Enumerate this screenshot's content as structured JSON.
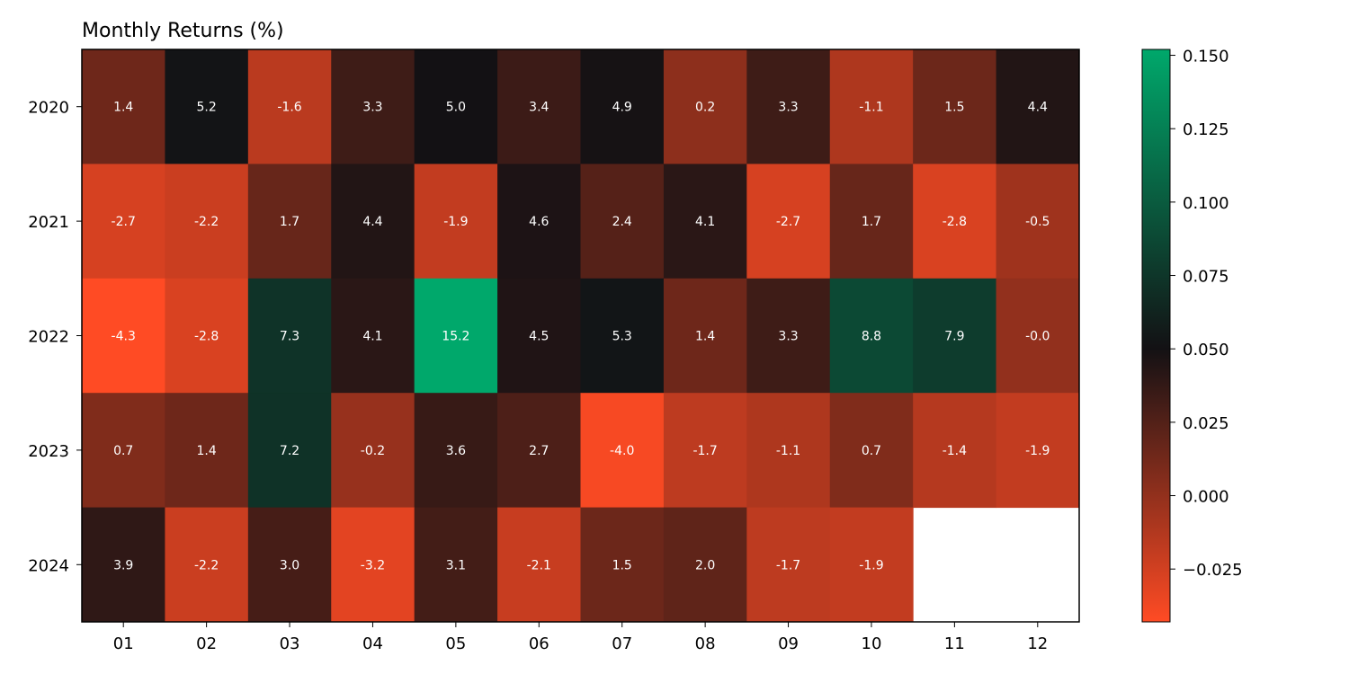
{
  "chart_data": {
    "type": "heatmap",
    "title": "Monthly Returns (%)",
    "xlabel": "",
    "ylabel": "",
    "x_categories": [
      "01",
      "02",
      "03",
      "04",
      "05",
      "06",
      "07",
      "08",
      "09",
      "10",
      "11",
      "12"
    ],
    "y_categories": [
      "2020",
      "2021",
      "2022",
      "2023",
      "2024"
    ],
    "values": [
      [
        1.4,
        5.2,
        -1.6,
        3.3,
        5.0,
        3.4,
        4.9,
        0.2,
        3.3,
        -1.1,
        1.5,
        4.4
      ],
      [
        -2.7,
        -2.2,
        1.7,
        4.4,
        -1.9,
        4.6,
        2.4,
        4.1,
        -2.7,
        1.7,
        -2.8,
        -0.5
      ],
      [
        -4.3,
        -2.8,
        7.3,
        4.1,
        15.2,
        4.5,
        5.3,
        1.4,
        3.3,
        8.8,
        7.9,
        -0.0
      ],
      [
        0.7,
        1.4,
        7.2,
        -0.2,
        3.6,
        2.7,
        -4.0,
        -1.7,
        -1.1,
        0.7,
        -1.4,
        -1.9
      ],
      [
        3.9,
        -2.2,
        3.0,
        -3.2,
        3.1,
        -2.1,
        1.5,
        2.0,
        -1.7,
        -1.9,
        null,
        null
      ]
    ],
    "value_labels": [
      [
        "1.4",
        "5.2",
        "-1.6",
        "3.3",
        "5.0",
        "3.4",
        "4.9",
        "0.2",
        "3.3",
        "-1.1",
        "1.5",
        "4.4"
      ],
      [
        "-2.7",
        "-2.2",
        "1.7",
        "4.4",
        "-1.9",
        "4.6",
        "2.4",
        "4.1",
        "-2.7",
        "1.7",
        "-2.8",
        "-0.5"
      ],
      [
        "-4.3",
        "-2.8",
        "7.3",
        "4.1",
        "15.2",
        "4.5",
        "5.3",
        "1.4",
        "3.3",
        "8.8",
        "7.9",
        "-0.0"
      ],
      [
        "0.7",
        "1.4",
        "7.2",
        "-0.2",
        "3.6",
        "2.7",
        "-4.0",
        "-1.7",
        "-1.1",
        "0.7",
        "-1.4",
        "-1.9"
      ],
      [
        "3.9",
        "-2.2",
        "3.0",
        "-3.2",
        "3.1",
        "-2.1",
        "1.5",
        "2.0",
        "-1.7",
        "-1.9",
        "",
        ""
      ]
    ],
    "colorbar": {
      "range": [
        -0.043,
        0.152
      ],
      "ticks": [
        -0.025,
        0.0,
        0.025,
        0.05,
        0.075,
        0.1,
        0.125,
        0.15
      ],
      "tick_labels": [
        "−0.025",
        "0.000",
        "0.025",
        "0.050",
        "0.075",
        "0.100",
        "0.125",
        "0.150"
      ],
      "colors": [
        "#ff4b24",
        "#131114",
        "#00a86b"
      ],
      "center": 0.05
    },
    "grid": false
  }
}
